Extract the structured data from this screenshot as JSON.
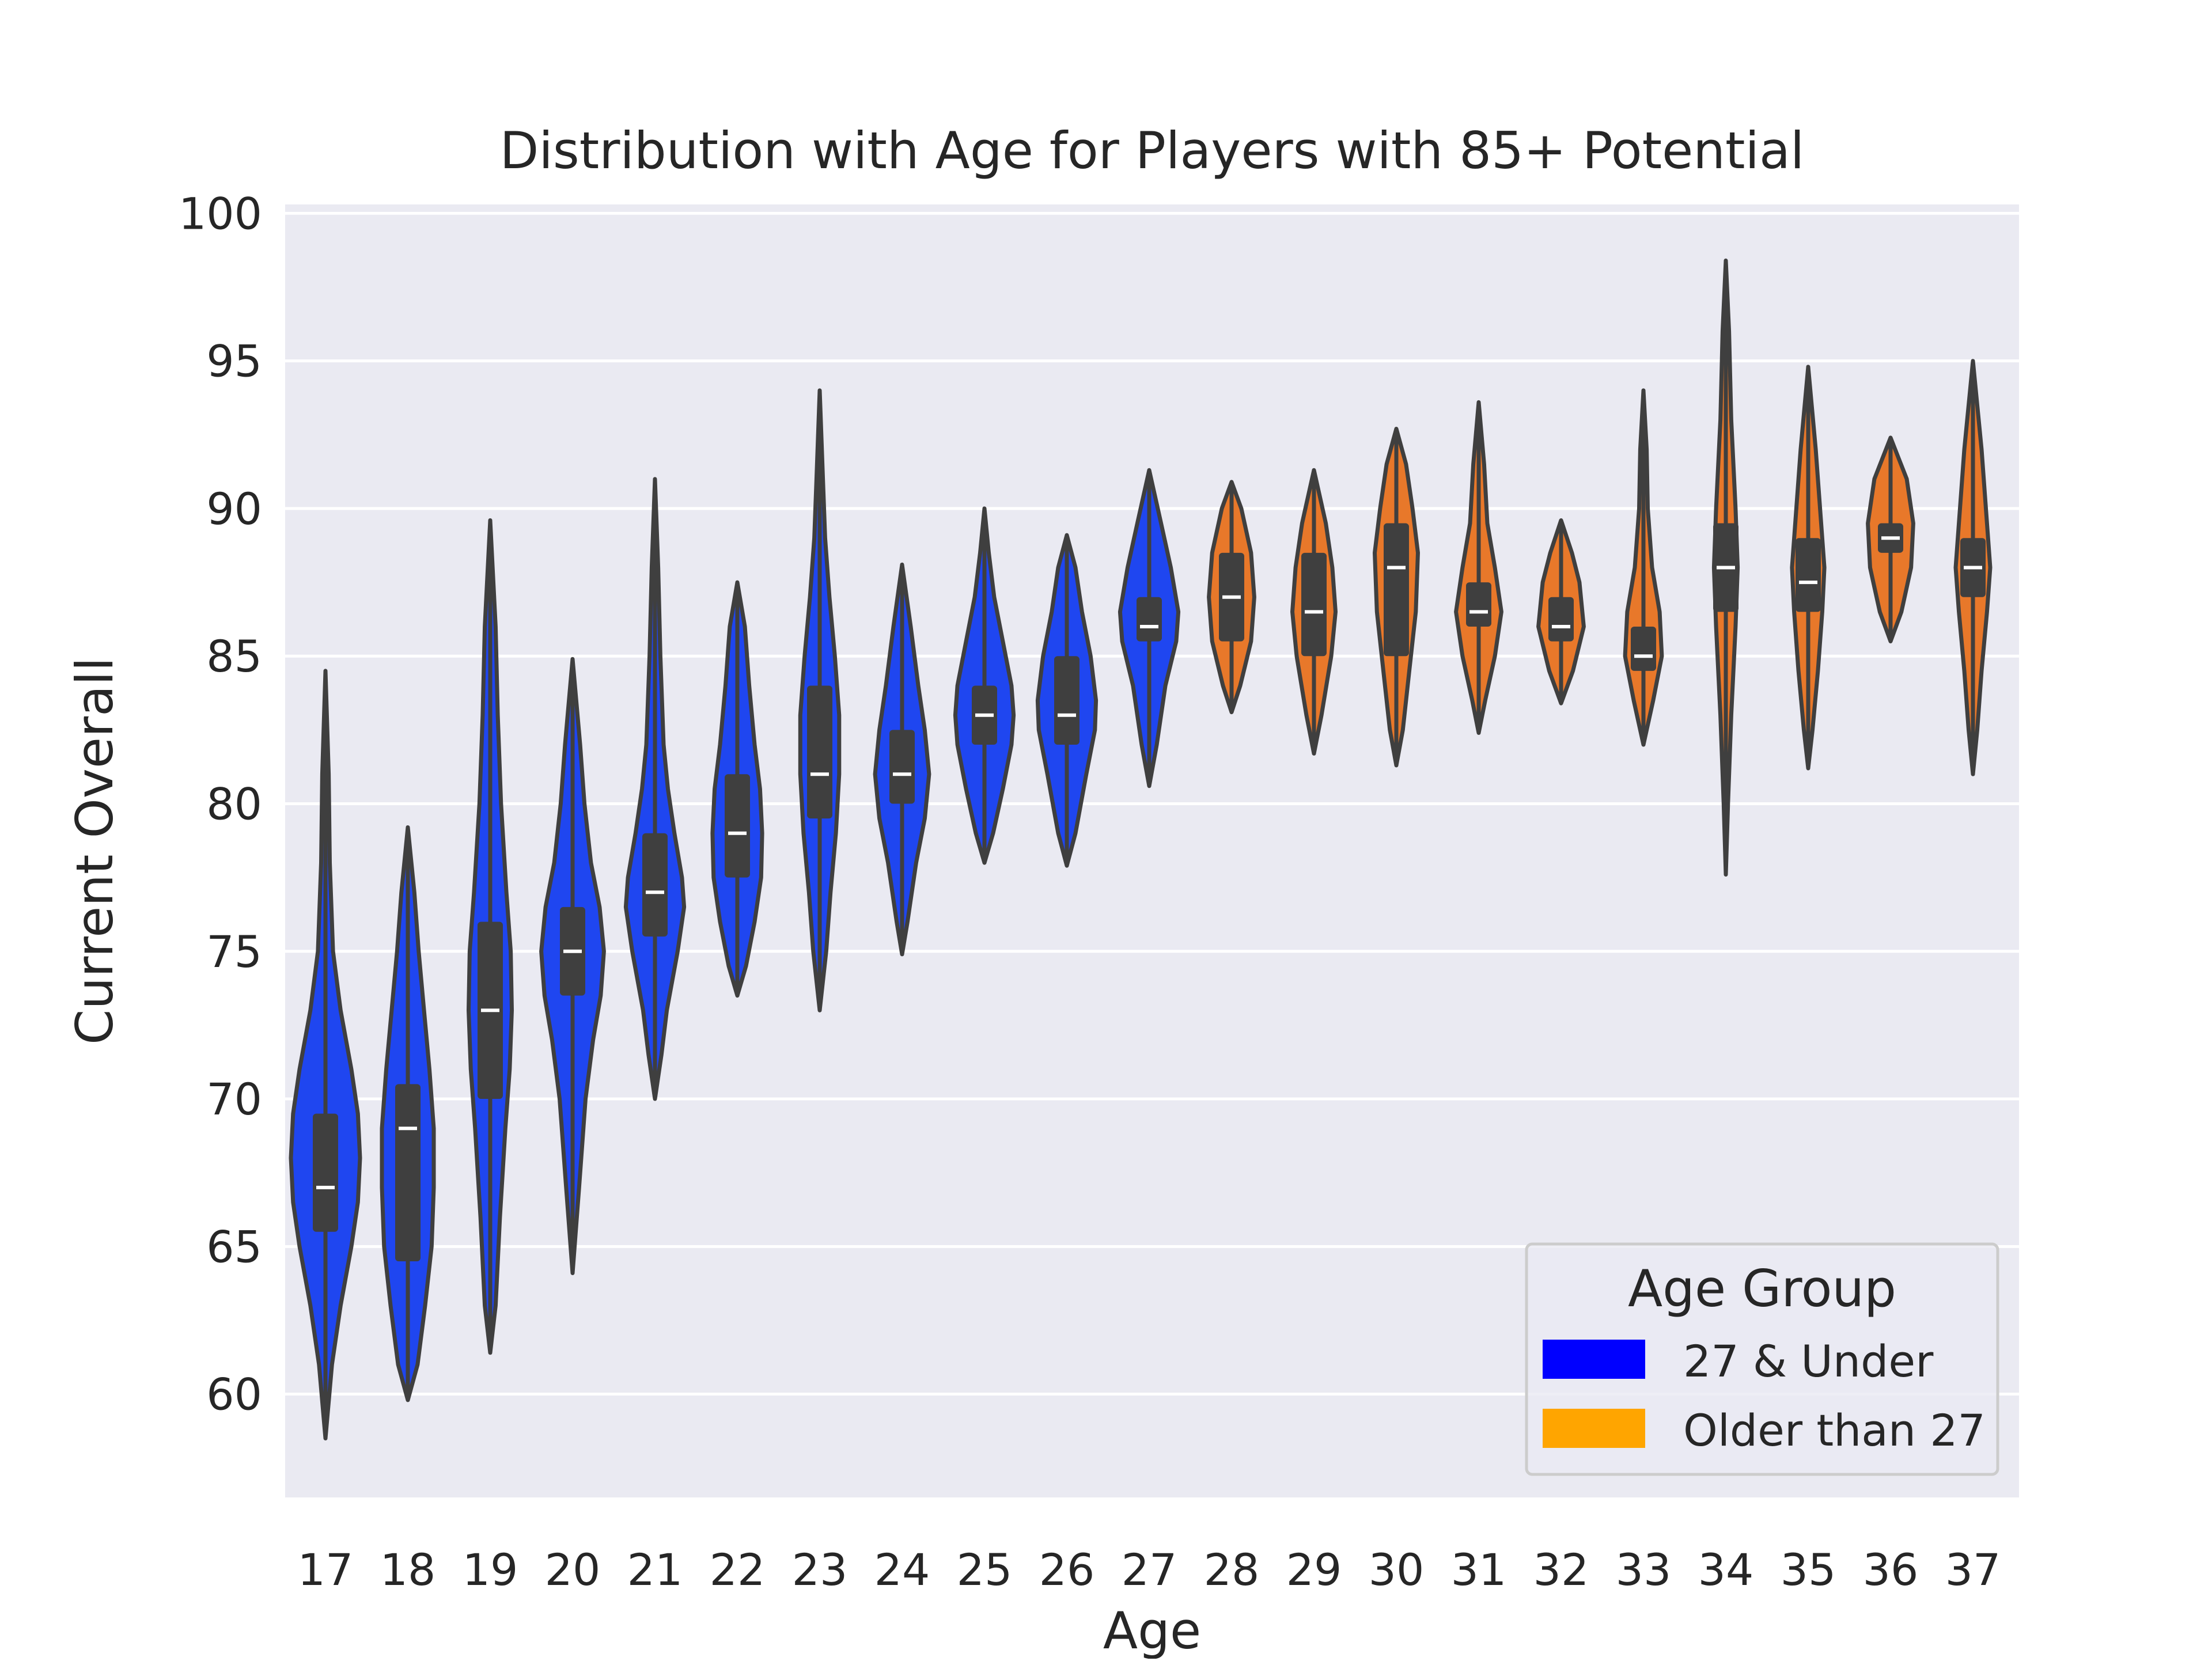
{
  "chart_data": {
    "type": "violin",
    "title": "Distribution with Age for Players with 85+ Potential",
    "xlabel": "Age",
    "ylabel": "Current Overall",
    "ylim": [
      56.5,
      100.3
    ],
    "yticks": [
      60,
      65,
      70,
      75,
      80,
      85,
      90,
      95,
      100
    ],
    "grid": true,
    "legend": {
      "title": "Age Group",
      "placement": "lower-right",
      "entries": [
        {
          "label": "27 & Under",
          "color": "#0000ff"
        },
        {
          "label": "Older than 27",
          "color": "#ffa500"
        }
      ]
    },
    "series_colors": {
      "27 & Under": "#1f46f0",
      "Older than 27": "#e8782a"
    },
    "categories": [
      "17",
      "18",
      "19",
      "20",
      "21",
      "22",
      "23",
      "24",
      "25",
      "26",
      "27",
      "28",
      "29",
      "30",
      "31",
      "32",
      "33",
      "34",
      "35",
      "36",
      "37"
    ],
    "violins": [
      {
        "age": "17",
        "group": "27 & Under",
        "min": 58.5,
        "max": 84.5,
        "median": 67,
        "q1": 65.5,
        "q3": 69.5,
        "profile": [
          [
            58.5,
            0
          ],
          [
            61,
            6
          ],
          [
            63,
            14
          ],
          [
            65,
            24
          ],
          [
            66.5,
            30
          ],
          [
            68,
            32
          ],
          [
            69.5,
            30
          ],
          [
            71,
            24
          ],
          [
            73,
            14
          ],
          [
            75,
            7
          ],
          [
            78,
            4
          ],
          [
            81,
            3
          ],
          [
            84.5,
            0
          ]
        ]
      },
      {
        "age": "18",
        "group": "27 & Under",
        "min": 59.8,
        "max": 79.2,
        "median": 69,
        "q1": 64.5,
        "q3": 70.5,
        "profile": [
          [
            59.8,
            0
          ],
          [
            61,
            9
          ],
          [
            63,
            16
          ],
          [
            65,
            22
          ],
          [
            67,
            24
          ],
          [
            69,
            24
          ],
          [
            71,
            20
          ],
          [
            73,
            15
          ],
          [
            75,
            10
          ],
          [
            77,
            6
          ],
          [
            79.2,
            0
          ]
        ]
      },
      {
        "age": "19",
        "group": "27 & Under",
        "min": 61.4,
        "max": 89.6,
        "median": 73,
        "q1": 70,
        "q3": 76,
        "profile": [
          [
            61.4,
            0
          ],
          [
            63,
            5
          ],
          [
            66,
            9
          ],
          [
            69,
            14
          ],
          [
            71,
            18
          ],
          [
            73,
            20
          ],
          [
            75,
            19
          ],
          [
            77,
            15
          ],
          [
            80,
            10
          ],
          [
            83,
            7
          ],
          [
            86,
            5
          ],
          [
            89.6,
            0
          ]
        ]
      },
      {
        "age": "20",
        "group": "27 & Under",
        "min": 64.1,
        "max": 84.9,
        "median": 75,
        "q1": 73.5,
        "q3": 76.5,
        "profile": [
          [
            64.1,
            0
          ],
          [
            67,
            6
          ],
          [
            70,
            12
          ],
          [
            72,
            19
          ],
          [
            73.5,
            26
          ],
          [
            75,
            29
          ],
          [
            76.5,
            25
          ],
          [
            78,
            17
          ],
          [
            80,
            11
          ],
          [
            82,
            7
          ],
          [
            84.9,
            0
          ]
        ]
      },
      {
        "age": "21",
        "group": "27 & Under",
        "min": 70,
        "max": 91,
        "median": 77,
        "q1": 75.5,
        "q3": 79,
        "profile": [
          [
            70,
            0
          ],
          [
            71.5,
            6
          ],
          [
            73,
            11
          ],
          [
            75,
            21
          ],
          [
            76.5,
            27
          ],
          [
            77.5,
            25
          ],
          [
            79,
            18
          ],
          [
            80.5,
            12
          ],
          [
            82,
            8
          ],
          [
            85,
            5
          ],
          [
            88,
            3
          ],
          [
            91,
            0
          ]
        ]
      },
      {
        "age": "22",
        "group": "27 & Under",
        "min": 73.5,
        "max": 87.5,
        "median": 79,
        "q1": 77.5,
        "q3": 81,
        "profile": [
          [
            73.5,
            0
          ],
          [
            74.5,
            8
          ],
          [
            76,
            16
          ],
          [
            77.5,
            22
          ],
          [
            79,
            23
          ],
          [
            80.5,
            21
          ],
          [
            82,
            16
          ],
          [
            84,
            11
          ],
          [
            86,
            7
          ],
          [
            87.5,
            0
          ]
        ]
      },
      {
        "age": "23",
        "group": "27 & Under",
        "min": 73,
        "max": 94,
        "median": 81,
        "q1": 79.5,
        "q3": 84,
        "profile": [
          [
            73,
            0
          ],
          [
            75,
            6
          ],
          [
            77,
            10
          ],
          [
            79,
            15
          ],
          [
            81,
            18
          ],
          [
            83,
            18
          ],
          [
            85,
            14
          ],
          [
            87,
            9
          ],
          [
            89,
            5
          ],
          [
            91,
            3
          ],
          [
            94,
            0
          ]
        ]
      },
      {
        "age": "24",
        "group": "27 & Under",
        "min": 74.9,
        "max": 88.1,
        "median": 81,
        "q1": 80,
        "q3": 82.5,
        "profile": [
          [
            74.9,
            0
          ],
          [
            76,
            5
          ],
          [
            78,
            13
          ],
          [
            79.5,
            21
          ],
          [
            81,
            25
          ],
          [
            82.5,
            21
          ],
          [
            84,
            15
          ],
          [
            86,
            8
          ],
          [
            88.1,
            0
          ]
        ]
      },
      {
        "age": "25",
        "group": "27 & Under",
        "min": 78,
        "max": 90,
        "median": 83,
        "q1": 82,
        "q3": 84,
        "profile": [
          [
            78,
            0
          ],
          [
            79,
            8
          ],
          [
            80.5,
            17
          ],
          [
            82,
            25
          ],
          [
            83,
            27
          ],
          [
            84,
            25
          ],
          [
            85.5,
            17
          ],
          [
            87,
            9
          ],
          [
            88.5,
            4
          ],
          [
            90,
            0
          ]
        ]
      },
      {
        "age": "26",
        "group": "27 & Under",
        "min": 77.9,
        "max": 89.1,
        "median": 83,
        "q1": 82,
        "q3": 85,
        "profile": [
          [
            77.9,
            0
          ],
          [
            79,
            8
          ],
          [
            81,
            18
          ],
          [
            82.5,
            26
          ],
          [
            83.5,
            27
          ],
          [
            85,
            22
          ],
          [
            86.5,
            14
          ],
          [
            88,
            8
          ],
          [
            89.1,
            0
          ]
        ]
      },
      {
        "age": "27",
        "group": "27 & Under",
        "min": 80.6,
        "max": 91.3,
        "median": 86,
        "q1": 85.5,
        "q3": 87,
        "profile": [
          [
            80.6,
            0
          ],
          [
            82,
            7
          ],
          [
            84,
            15
          ],
          [
            85.5,
            25
          ],
          [
            86.5,
            27
          ],
          [
            88,
            20
          ],
          [
            89.5,
            11
          ],
          [
            91.3,
            0
          ]
        ]
      },
      {
        "age": "28",
        "group": "Older than 27",
        "min": 83.1,
        "max": 90.9,
        "median": 87,
        "q1": 85.5,
        "q3": 88.5,
        "profile": [
          [
            83.1,
            0
          ],
          [
            84,
            8
          ],
          [
            85.5,
            18
          ],
          [
            87,
            21
          ],
          [
            88.5,
            18
          ],
          [
            90,
            9
          ],
          [
            90.9,
            0
          ]
        ]
      },
      {
        "age": "29",
        "group": "Older than 27",
        "min": 81.7,
        "max": 91.3,
        "median": 86.5,
        "q1": 85,
        "q3": 88.5,
        "profile": [
          [
            81.7,
            0
          ],
          [
            83,
            7
          ],
          [
            85,
            16
          ],
          [
            86.5,
            20
          ],
          [
            88,
            17
          ],
          [
            89.5,
            11
          ],
          [
            91.3,
            0
          ]
        ]
      },
      {
        "age": "30",
        "group": "Older than 27",
        "min": 81.3,
        "max": 92.7,
        "median": 88,
        "q1": 85,
        "q3": 89.5,
        "profile": [
          [
            81.3,
            0
          ],
          [
            82.5,
            6
          ],
          [
            84.5,
            12
          ],
          [
            86.5,
            18
          ],
          [
            88.5,
            20
          ],
          [
            90,
            15
          ],
          [
            91.5,
            9
          ],
          [
            92.7,
            0
          ]
        ]
      },
      {
        "age": "31",
        "group": "Older than 27",
        "min": 82.4,
        "max": 93.6,
        "median": 86.5,
        "q1": 86,
        "q3": 87.5,
        "profile": [
          [
            82.4,
            0
          ],
          [
            83.5,
            6
          ],
          [
            85,
            15
          ],
          [
            86.5,
            21
          ],
          [
            88,
            15
          ],
          [
            89.5,
            8
          ],
          [
            91.5,
            5
          ],
          [
            93.6,
            0
          ]
        ]
      },
      {
        "age": "32",
        "group": "Older than 27",
        "min": 83.4,
        "max": 89.6,
        "median": 86,
        "q1": 85.5,
        "q3": 87,
        "profile": [
          [
            83.4,
            0
          ],
          [
            84.5,
            11
          ],
          [
            86,
            21
          ],
          [
            87.5,
            17
          ],
          [
            88.5,
            10
          ],
          [
            89.6,
            0
          ]
        ]
      },
      {
        "age": "33",
        "group": "Older than 27",
        "min": 82,
        "max": 94,
        "median": 85,
        "q1": 84.5,
        "q3": 86,
        "profile": [
          [
            82,
            0
          ],
          [
            83.5,
            9
          ],
          [
            85,
            17
          ],
          [
            86.5,
            15
          ],
          [
            88,
            8
          ],
          [
            90,
            4
          ],
          [
            92,
            3
          ],
          [
            94,
            0
          ]
        ]
      },
      {
        "age": "34",
        "group": "Older than 27",
        "min": 77.6,
        "max": 98.4,
        "median": 88,
        "q1": 86.5,
        "q3": 89.5,
        "profile": [
          [
            77.6,
            0
          ],
          [
            80,
            2
          ],
          [
            83,
            5
          ],
          [
            86,
            9
          ],
          [
            88,
            11
          ],
          [
            90,
            9
          ],
          [
            93,
            5
          ],
          [
            96,
            3
          ],
          [
            98.4,
            0
          ]
        ]
      },
      {
        "age": "35",
        "group": "Older than 27",
        "min": 81.2,
        "max": 94.8,
        "median": 87.5,
        "q1": 86.5,
        "q3": 89,
        "profile": [
          [
            81.2,
            0
          ],
          [
            82.5,
            4
          ],
          [
            84.5,
            9
          ],
          [
            86.5,
            13
          ],
          [
            88,
            15
          ],
          [
            90,
            11
          ],
          [
            92,
            7
          ],
          [
            94.8,
            0
          ]
        ]
      },
      {
        "age": "36",
        "group": "Older than 27",
        "min": 85.5,
        "max": 92.4,
        "median": 89,
        "q1": 88.5,
        "q3": 89.5,
        "profile": [
          [
            85.5,
            0
          ],
          [
            86.5,
            10
          ],
          [
            88,
            19
          ],
          [
            89.5,
            21
          ],
          [
            91,
            15
          ],
          [
            92.4,
            0
          ]
        ]
      },
      {
        "age": "37",
        "group": "Older than 27",
        "min": 81,
        "max": 95,
        "median": 88,
        "q1": 87,
        "q3": 89,
        "profile": [
          [
            81,
            0
          ],
          [
            82.5,
            4
          ],
          [
            84.5,
            8
          ],
          [
            86.5,
            13
          ],
          [
            88,
            16
          ],
          [
            90,
            12
          ],
          [
            92,
            8
          ],
          [
            95,
            0
          ]
        ]
      }
    ]
  }
}
